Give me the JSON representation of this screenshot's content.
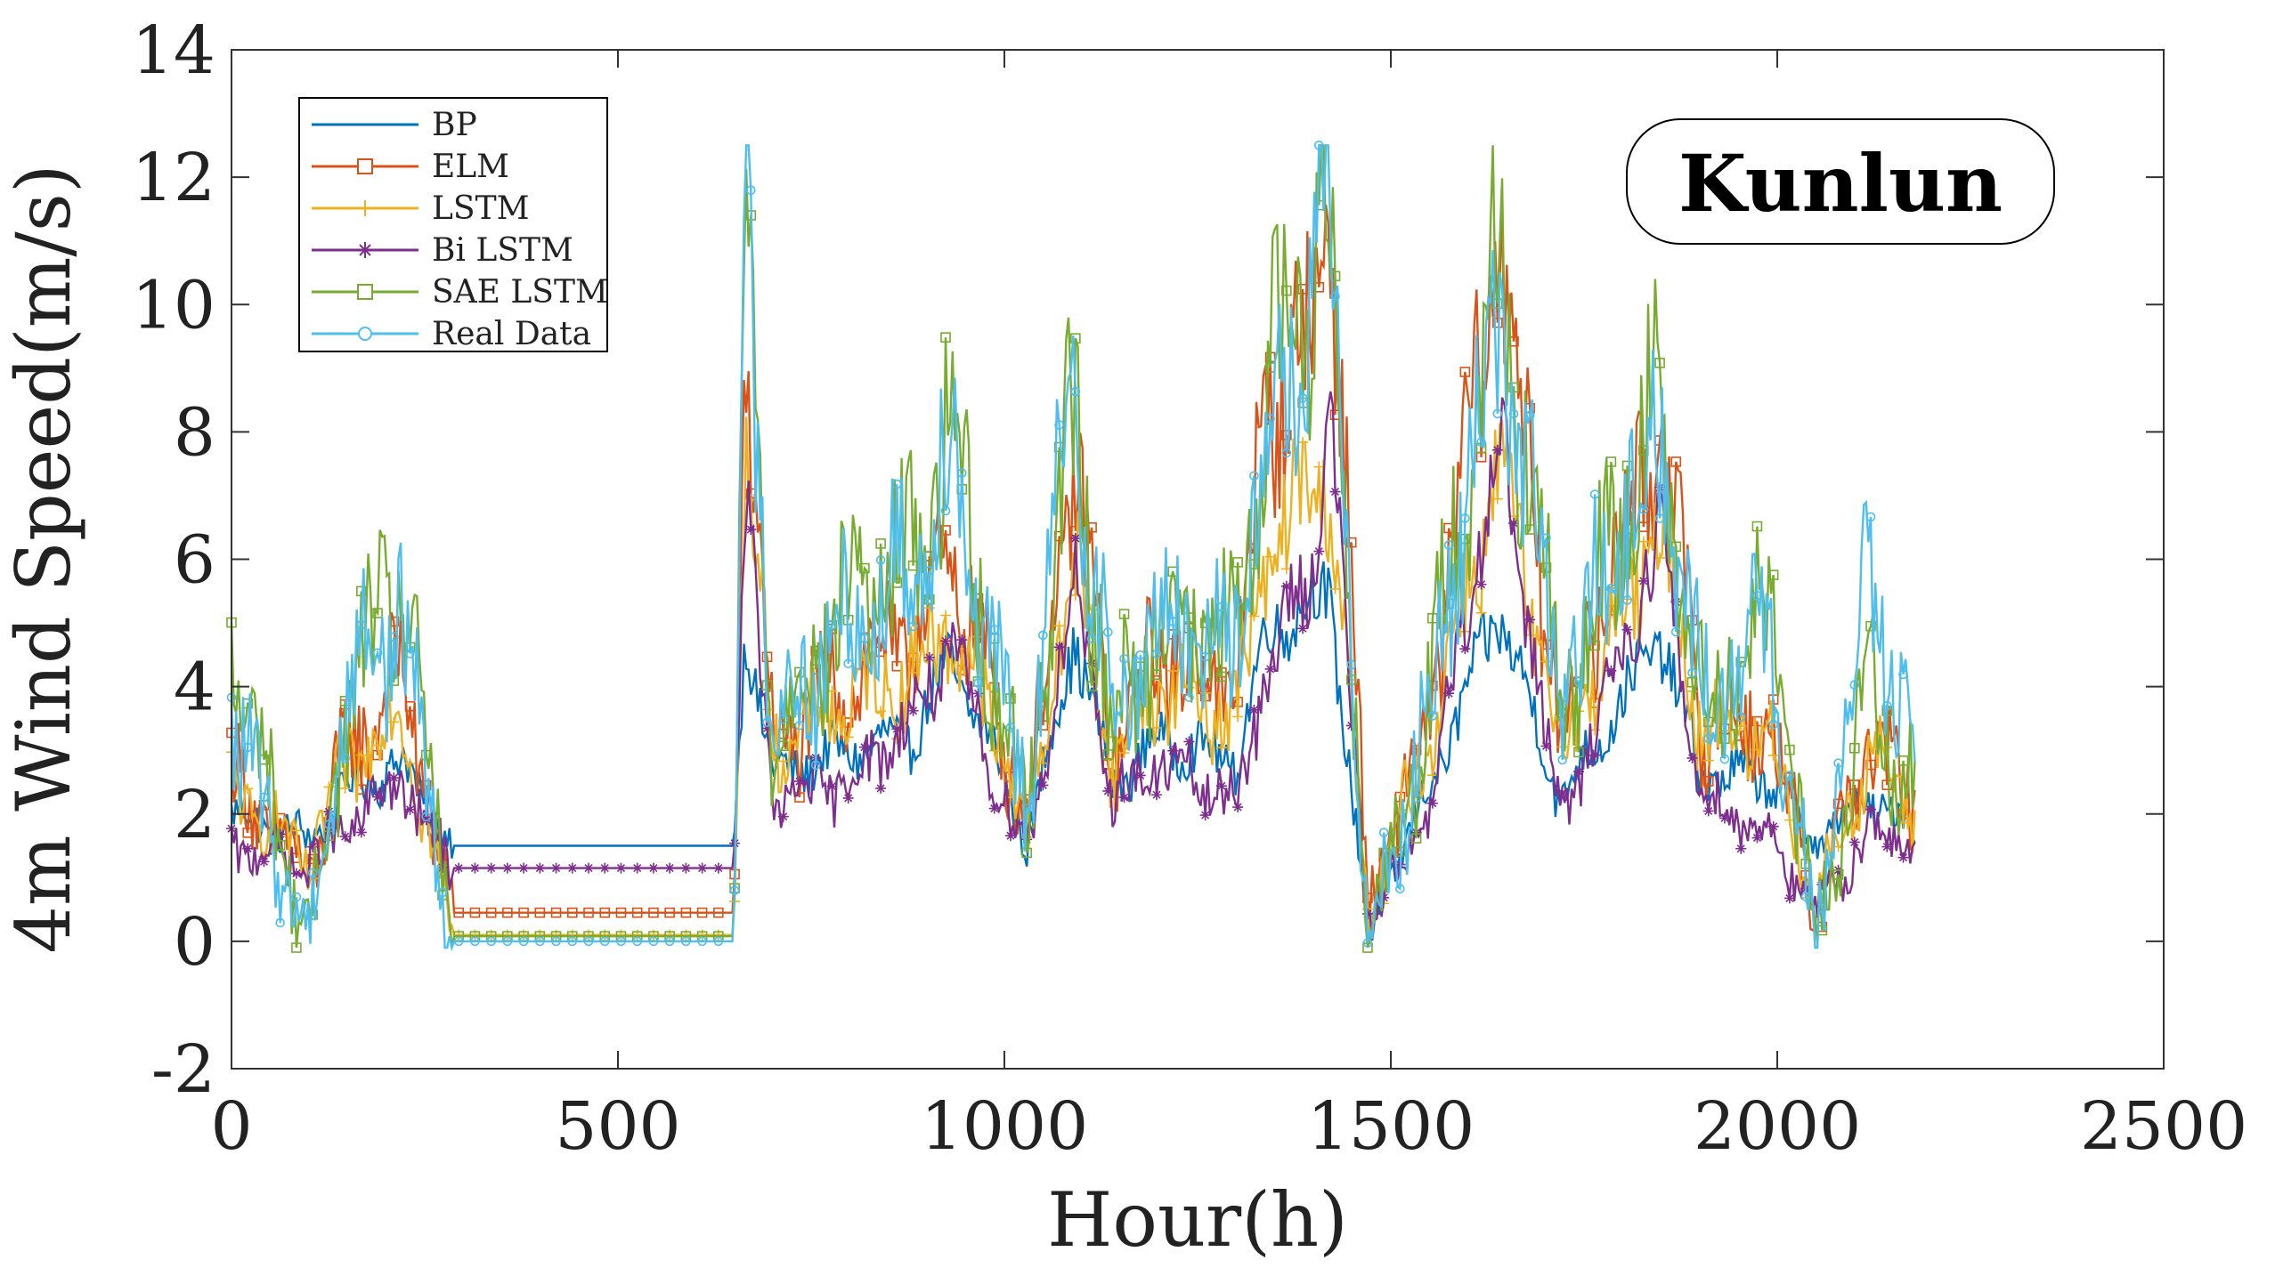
{
  "chart_data": {
    "type": "line",
    "title": "",
    "badge": "Kunlun",
    "xlabel": "Hour(h)",
    "ylabel": "4m Wind Speed(m/s)",
    "xlim": [
      0,
      2500
    ],
    "ylim": [
      -2,
      14
    ],
    "xticks": [
      0,
      500,
      1000,
      1500,
      2000,
      2500
    ],
    "yticks": [
      -2,
      0,
      2,
      4,
      6,
      8,
      10,
      12,
      14
    ],
    "grid": false,
    "legend_position": "top-left",
    "x_range_of_series": [
      0,
      2180
    ],
    "series": [
      {
        "name": "BP",
        "color": "#0072BD",
        "marker": "none",
        "anchors": [
          [
            0,
            2.0
          ],
          [
            100,
            1.6
          ],
          [
            150,
            2.4
          ],
          [
            220,
            2.8
          ],
          [
            285,
            1.5
          ],
          [
            650,
            1.5
          ],
          [
            665,
            5.0
          ],
          [
            700,
            2.6
          ],
          [
            800,
            3.0
          ],
          [
            880,
            3.2
          ],
          [
            930,
            4.4
          ],
          [
            1000,
            2.6
          ],
          [
            1030,
            1.5
          ],
          [
            1090,
            4.8
          ],
          [
            1140,
            2.4
          ],
          [
            1200,
            3.2
          ],
          [
            1300,
            2.8
          ],
          [
            1340,
            4.9
          ],
          [
            1400,
            5.3
          ],
          [
            1420,
            5.5
          ],
          [
            1470,
            0.2
          ],
          [
            1550,
            2.4
          ],
          [
            1640,
            5.2
          ],
          [
            1720,
            2.2
          ],
          [
            1850,
            4.8
          ],
          [
            1900,
            2.6
          ],
          [
            1990,
            2.6
          ],
          [
            2050,
            1.6
          ],
          [
            2120,
            2.2
          ],
          [
            2180,
            1.8
          ]
        ]
      },
      {
        "name": "ELM",
        "color": "#D95319",
        "marker": "square",
        "anchors": [
          [
            0,
            2.6
          ],
          [
            100,
            1.0
          ],
          [
            150,
            3.0
          ],
          [
            220,
            4.2
          ],
          [
            285,
            0.45
          ],
          [
            650,
            0.45
          ],
          [
            665,
            9.5
          ],
          [
            700,
            3.0
          ],
          [
            800,
            4.2
          ],
          [
            880,
            4.8
          ],
          [
            930,
            6.0
          ],
          [
            1000,
            3.2
          ],
          [
            1030,
            2.0
          ],
          [
            1090,
            7.5
          ],
          [
            1140,
            3.0
          ],
          [
            1200,
            4.5
          ],
          [
            1300,
            4.0
          ],
          [
            1340,
            8.5
          ],
          [
            1400,
            9.5
          ],
          [
            1420,
            12.4
          ],
          [
            1470,
            0.5
          ],
          [
            1550,
            3.5
          ],
          [
            1640,
            11.2
          ],
          [
            1720,
            3.2
          ],
          [
            1850,
            8.3
          ],
          [
            1900,
            3.5
          ],
          [
            1990,
            3.4
          ],
          [
            2050,
            0.5
          ],
          [
            2120,
            3.2
          ],
          [
            2180,
            2.0
          ]
        ]
      },
      {
        "name": "LSTM",
        "color": "#EDB120",
        "marker": "plus",
        "anchors": [
          [
            0,
            2.4
          ],
          [
            100,
            1.2
          ],
          [
            150,
            2.8
          ],
          [
            220,
            3.6
          ],
          [
            285,
            0.1
          ],
          [
            650,
            0.1
          ],
          [
            665,
            8.0
          ],
          [
            700,
            3.0
          ],
          [
            800,
            3.8
          ],
          [
            880,
            4.2
          ],
          [
            930,
            5.0
          ],
          [
            1000,
            3.0
          ],
          [
            1030,
            1.8
          ],
          [
            1090,
            6.0
          ],
          [
            1140,
            2.8
          ],
          [
            1200,
            4.0
          ],
          [
            1300,
            3.6
          ],
          [
            1340,
            6.0
          ],
          [
            1400,
            7.2
          ],
          [
            1420,
            7.3
          ],
          [
            1470,
            0.4
          ],
          [
            1550,
            3.2
          ],
          [
            1640,
            7.5
          ],
          [
            1720,
            3.0
          ],
          [
            1850,
            6.5
          ],
          [
            1900,
            3.4
          ],
          [
            1990,
            3.2
          ],
          [
            2050,
            0.6
          ],
          [
            2120,
            3.0
          ],
          [
            2180,
            1.9
          ]
        ]
      },
      {
        "name": "Bi LSTM",
        "color": "#7E2F8E",
        "marker": "asterisk",
        "anchors": [
          [
            0,
            1.5
          ],
          [
            100,
            1.2
          ],
          [
            150,
            1.8
          ],
          [
            220,
            2.5
          ],
          [
            285,
            1.15
          ],
          [
            650,
            1.15
          ],
          [
            665,
            7.0
          ],
          [
            700,
            2.2
          ],
          [
            800,
            2.5
          ],
          [
            880,
            3.5
          ],
          [
            930,
            4.6
          ],
          [
            1000,
            2.2
          ],
          [
            1030,
            1.4
          ],
          [
            1090,
            5.6
          ],
          [
            1140,
            2.2
          ],
          [
            1200,
            2.8
          ],
          [
            1300,
            2.2
          ],
          [
            1340,
            4.2
          ],
          [
            1400,
            6.0
          ],
          [
            1420,
            8.4
          ],
          [
            1470,
            0.3
          ],
          [
            1550,
            2.0
          ],
          [
            1640,
            8.0
          ],
          [
            1720,
            1.8
          ],
          [
            1850,
            6.4
          ],
          [
            1900,
            2.3
          ],
          [
            1990,
            1.7
          ],
          [
            2050,
            0.4
          ],
          [
            2120,
            1.8
          ],
          [
            2180,
            1.4
          ]
        ]
      },
      {
        "name": "SAE LSTM",
        "color": "#77AC30",
        "marker": "square",
        "anchors": [
          [
            0,
            4.6
          ],
          [
            100,
            0.0
          ],
          [
            150,
            3.8
          ],
          [
            220,
            5.8
          ],
          [
            285,
            0.08
          ],
          [
            650,
            0.08
          ],
          [
            665,
            11.4
          ],
          [
            700,
            3.2
          ],
          [
            800,
            5.5
          ],
          [
            880,
            6.0
          ],
          [
            930,
            8.2
          ],
          [
            1000,
            3.2
          ],
          [
            1030,
            2.2
          ],
          [
            1090,
            8.4
          ],
          [
            1140,
            3.2
          ],
          [
            1200,
            5.2
          ],
          [
            1300,
            4.6
          ],
          [
            1340,
            8.7
          ],
          [
            1400,
            10.8
          ],
          [
            1420,
            11.8
          ],
          [
            1470,
            -0.1
          ],
          [
            1550,
            3.8
          ],
          [
            1640,
            10.8
          ],
          [
            1720,
            3.6
          ],
          [
            1850,
            8.6
          ],
          [
            1900,
            3.6
          ],
          [
            1990,
            5.2
          ],
          [
            2050,
            0.0
          ],
          [
            2120,
            4.0
          ],
          [
            2180,
            2.3
          ]
        ]
      },
      {
        "name": "Real Data",
        "color": "#4DBEEE",
        "marker": "pentagram",
        "anchors": [
          [
            0,
            3.5
          ],
          [
            100,
            0.0
          ],
          [
            150,
            4.0
          ],
          [
            220,
            5.2
          ],
          [
            285,
            0.0
          ],
          [
            650,
            0.0
          ],
          [
            665,
            12.0
          ],
          [
            700,
            3.4
          ],
          [
            800,
            5.0
          ],
          [
            880,
            5.8
          ],
          [
            930,
            7.8
          ],
          [
            1000,
            3.4
          ],
          [
            1030,
            2.4
          ],
          [
            1090,
            8.8
          ],
          [
            1140,
            3.4
          ],
          [
            1200,
            5.0
          ],
          [
            1300,
            4.8
          ],
          [
            1340,
            8.0
          ],
          [
            1400,
            9.8
          ],
          [
            1420,
            11.6
          ],
          [
            1470,
            0.0
          ],
          [
            1550,
            3.6
          ],
          [
            1640,
            10.0
          ],
          [
            1720,
            3.8
          ],
          [
            1850,
            8.0
          ],
          [
            1900,
            3.8
          ],
          [
            1990,
            4.8
          ],
          [
            2050,
            0.0
          ],
          [
            2120,
            5.8
          ],
          [
            2180,
            2.4
          ]
        ]
      }
    ]
  }
}
